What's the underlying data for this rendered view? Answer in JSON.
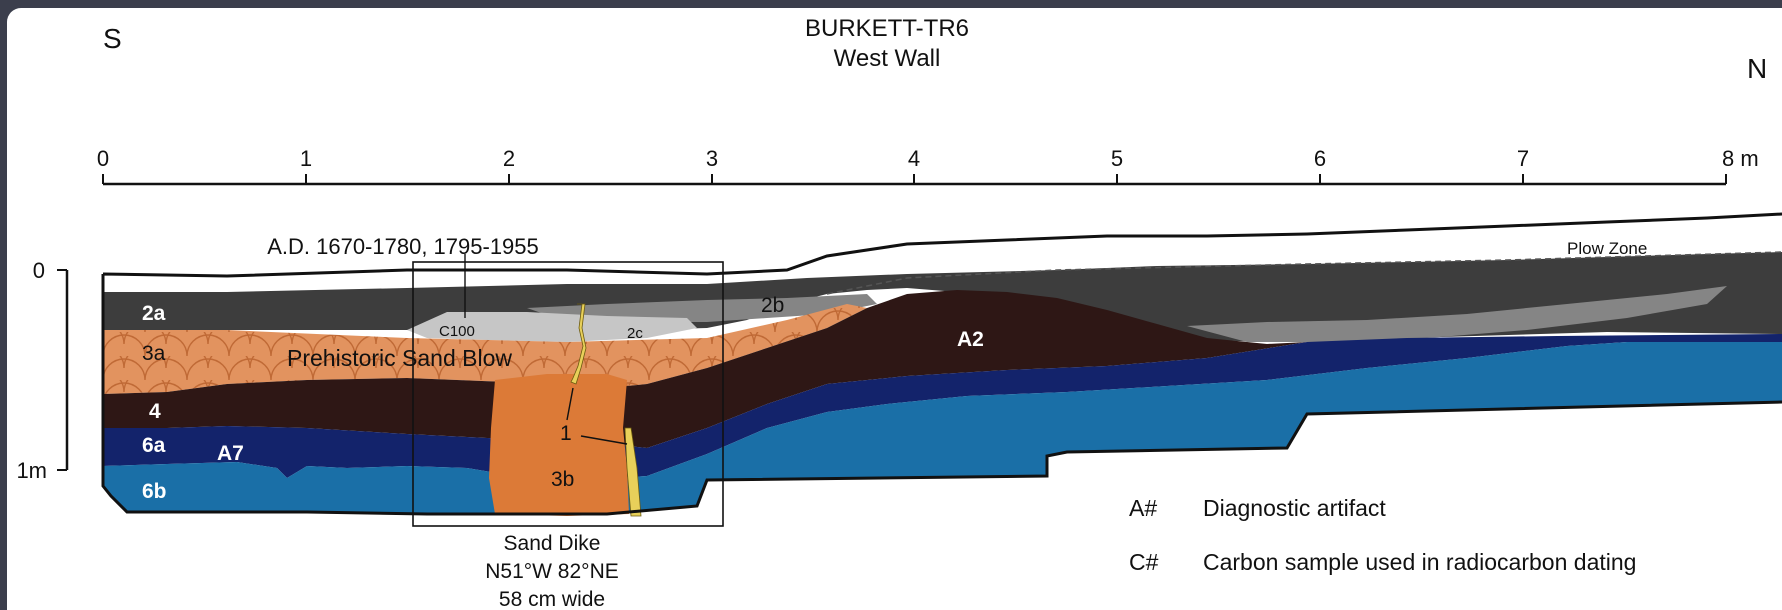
{
  "title": {
    "line1": "BURKETT-TR6",
    "line2": "West Wall"
  },
  "compass": {
    "south": "S",
    "north": "N"
  },
  "scale": {
    "ticks": [
      "0",
      "1",
      "2",
      "3",
      "4",
      "5",
      "6",
      "7",
      "8 m"
    ]
  },
  "depth": {
    "top": "0",
    "bottom": "1m"
  },
  "date_label": "A.D. 1670-1780, 1795-1955",
  "units": {
    "plow_zone": "Plow Zone",
    "u2a": "2a",
    "u2b": "2b",
    "u2c": "2c",
    "c100": "C100",
    "u3a": "3a",
    "sand_blow": "Prehistoric Sand Blow",
    "u4": "4",
    "u6a": "6a",
    "a7": "A7",
    "u6b": "6b",
    "a2": "A2",
    "u1": "1",
    "u3b": "3b"
  },
  "dike": {
    "line1": "Sand Dike",
    "line2": "N51°W 82°NE",
    "line3": "58 cm wide"
  },
  "legend": {
    "a_key": "A#",
    "a_desc": "Diagnostic artifact",
    "c_key": "C#",
    "c_desc": "Carbon sample used in radiocarbon dating"
  },
  "colors": {
    "background": "#3b3e4c",
    "dark_gray_2a": "#3d3d3d",
    "mid_gray_2b": "#858585",
    "light_gray_2c": "#c6c6c6",
    "sand_blow_3a": "#e2935f",
    "dike_3b": "#dc7a37",
    "clay_4": "#2e1715",
    "navy_6a": "#13236b",
    "blue_6b": "#1a6fa7",
    "fracture_1": "#e8d05a"
  }
}
